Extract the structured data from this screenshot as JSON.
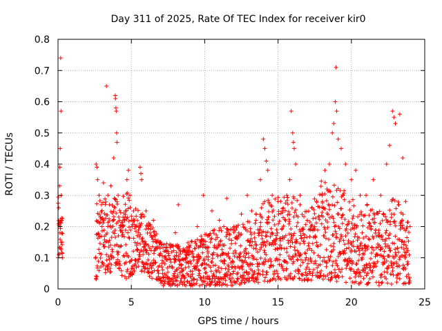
{
  "chart_data": {
    "type": "scatter",
    "title": "Day 311 of 2025, Rate Of TEC Index for receiver kir0",
    "xlabel": "GPS time / hours",
    "ylabel": "ROTI / TECUs",
    "xlim": [
      0,
      25
    ],
    "ylim": [
      0,
      0.8
    ],
    "xticks": [
      "0",
      "5",
      "10",
      "15",
      "20",
      "25"
    ],
    "yticks": [
      "0",
      "0.1",
      "0.2",
      "0.3",
      "0.4",
      "0.5",
      "0.6",
      "0.7",
      "0.8"
    ],
    "grid": true,
    "marker": "+",
    "color": "#ff0000",
    "series": [
      {
        "points": [
          [
            0.05,
            0.26
          ],
          [
            0.1,
            0.33
          ],
          [
            0.12,
            0.39
          ],
          [
            0.15,
            0.45
          ],
          [
            0.18,
            0.74
          ],
          [
            0.2,
            0.57
          ],
          [
            0.22,
            0.3
          ],
          [
            0.25,
            0.22
          ],
          [
            0.28,
            0.15
          ],
          [
            0.3,
            0.1
          ],
          [
            0.15,
            0.2
          ],
          [
            0.2,
            0.13
          ],
          [
            2.6,
            0.4
          ],
          [
            2.65,
            0.39
          ],
          [
            2.7,
            0.35
          ],
          [
            2.8,
            0.3
          ],
          [
            2.9,
            0.23
          ],
          [
            3.0,
            0.2
          ],
          [
            3.1,
            0.34
          ],
          [
            3.2,
            0.15
          ],
          [
            3.3,
            0.65
          ],
          [
            3.4,
            0.3
          ],
          [
            3.5,
            0.27
          ],
          [
            3.6,
            0.33
          ],
          [
            3.8,
            0.42
          ],
          [
            3.9,
            0.62
          ],
          [
            3.92,
            0.61
          ],
          [
            3.95,
            0.58
          ],
          [
            3.97,
            0.57
          ],
          [
            4.0,
            0.5
          ],
          [
            4.02,
            0.47
          ],
          [
            4.1,
            0.3
          ],
          [
            4.2,
            0.22
          ],
          [
            4.4,
            0.2
          ],
          [
            4.6,
            0.25
          ],
          [
            4.7,
            0.35
          ],
          [
            4.8,
            0.38
          ],
          [
            4.9,
            0.3
          ],
          [
            5.0,
            0.22
          ],
          [
            5.3,
            0.2
          ],
          [
            5.5,
            0.18
          ],
          [
            5.6,
            0.39
          ],
          [
            5.65,
            0.37
          ],
          [
            5.7,
            0.35
          ],
          [
            5.8,
            0.15
          ],
          [
            6.0,
            0.25
          ],
          [
            6.2,
            0.2
          ],
          [
            6.5,
            0.22
          ],
          [
            7.0,
            0.15
          ],
          [
            7.5,
            0.12
          ],
          [
            8.0,
            0.18
          ],
          [
            8.2,
            0.27
          ],
          [
            8.5,
            0.12
          ],
          [
            9.0,
            0.14
          ],
          [
            9.5,
            0.2
          ],
          [
            9.9,
            0.3
          ],
          [
            10.2,
            0.17
          ],
          [
            10.5,
            0.25
          ],
          [
            11.0,
            0.22
          ],
          [
            11.3,
            0.2
          ],
          [
            11.5,
            0.29
          ],
          [
            12.0,
            0.2
          ],
          [
            12.5,
            0.24
          ],
          [
            12.9,
            0.3
          ],
          [
            13.2,
            0.25
          ],
          [
            13.5,
            0.22
          ],
          [
            13.8,
            0.35
          ],
          [
            14.0,
            0.48
          ],
          [
            14.1,
            0.45
          ],
          [
            14.2,
            0.41
          ],
          [
            14.3,
            0.38
          ],
          [
            14.6,
            0.3
          ],
          [
            15.0,
            0.28
          ],
          [
            15.3,
            0.25
          ],
          [
            15.6,
            0.3
          ],
          [
            15.8,
            0.35
          ],
          [
            15.9,
            0.57
          ],
          [
            16.0,
            0.5
          ],
          [
            16.05,
            0.47
          ],
          [
            16.1,
            0.45
          ],
          [
            16.2,
            0.4
          ],
          [
            16.5,
            0.3
          ],
          [
            17.0,
            0.22
          ],
          [
            17.5,
            0.2
          ],
          [
            18.0,
            0.3
          ],
          [
            18.2,
            0.38
          ],
          [
            18.5,
            0.4
          ],
          [
            18.7,
            0.5
          ],
          [
            18.8,
            0.53
          ],
          [
            18.9,
            0.6
          ],
          [
            18.95,
            0.71
          ],
          [
            19.0,
            0.57
          ],
          [
            19.1,
            0.48
          ],
          [
            19.3,
            0.45
          ],
          [
            19.6,
            0.4
          ],
          [
            20.0,
            0.35
          ],
          [
            20.3,
            0.38
          ],
          [
            20.6,
            0.3
          ],
          [
            21.0,
            0.3
          ],
          [
            21.5,
            0.35
          ],
          [
            22.0,
            0.3
          ],
          [
            22.4,
            0.4
          ],
          [
            22.6,
            0.46
          ],
          [
            22.8,
            0.57
          ],
          [
            22.9,
            0.55
          ],
          [
            23.0,
            0.53
          ],
          [
            23.3,
            0.56
          ],
          [
            23.5,
            0.42
          ],
          [
            23.7,
            0.28
          ],
          [
            24.0,
            0.2
          ]
        ]
      }
    ],
    "envelope": {
      "hours": [
        0.0,
        0.3,
        2.5,
        3.0,
        3.5,
        4.0,
        4.5,
        5.0,
        5.5,
        6.0,
        6.5,
        7.0,
        8.0,
        9.0,
        10.0,
        11.0,
        12.0,
        13.0,
        14.0,
        15.0,
        16.0,
        17.0,
        18.0,
        19.0,
        20.0,
        21.0,
        22.0,
        23.0,
        24.0
      ],
      "low": [
        0.1,
        0.1,
        0.02,
        0.05,
        0.05,
        0.07,
        0.03,
        0.04,
        0.06,
        0.05,
        0.03,
        0.01,
        0.01,
        0.01,
        0.01,
        0.01,
        0.01,
        0.02,
        0.02,
        0.03,
        0.03,
        0.02,
        0.03,
        0.02,
        0.02,
        0.01,
        0.01,
        0.01,
        0.02
      ],
      "high": [
        0.3,
        0.25,
        0.3,
        0.3,
        0.28,
        0.3,
        0.32,
        0.3,
        0.27,
        0.22,
        0.2,
        0.15,
        0.14,
        0.15,
        0.18,
        0.2,
        0.2,
        0.22,
        0.28,
        0.3,
        0.3,
        0.25,
        0.35,
        0.33,
        0.3,
        0.28,
        0.25,
        0.3,
        0.2
      ]
    }
  }
}
